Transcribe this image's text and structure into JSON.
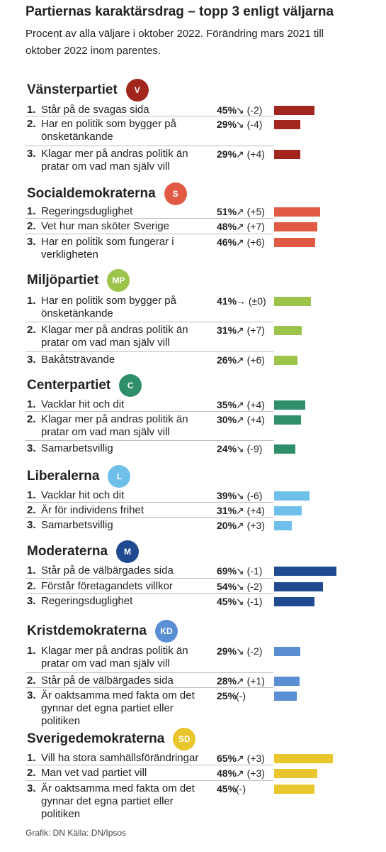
{
  "title": "Partiernas karaktärsdrag – topp 3 enligt väljarna",
  "subtitle": "Procent av alla väljare i oktober 2022. Förändring mars 2021 till oktober 2022 inom parentes.",
  "parties": [
    {
      "name": "Vänsterpartiet",
      "abbr": "V",
      "color": "#a3261e",
      "items": [
        {
          "rank": "1.",
          "label": "Står på de svagas sida",
          "value": 45,
          "value_label": "45%",
          "change": "↘ (-2)"
        },
        {
          "rank": "2.",
          "label": "Har en politik som bygger på önsketänkande",
          "value": 29,
          "value_label": "29%",
          "change": "↘ (-4)"
        },
        {
          "rank": "3.",
          "label": "Klagar mer på andras politik än pratar om vad man själv vill",
          "value": 29,
          "value_label": "29%",
          "change": "↗ (+4)"
        }
      ]
    },
    {
      "name": "Socialdemokraterna",
      "abbr": "S",
      "color": "#e05a44",
      "items": [
        {
          "rank": "1.",
          "label": "Regeringsduglighet",
          "value": 51,
          "value_label": "51%",
          "change": "↗ (+5)"
        },
        {
          "rank": "2.",
          "label": "Vet hur man sköter Sverige",
          "value": 48,
          "value_label": "48%",
          "change": "↗ (+7)"
        },
        {
          "rank": "3.",
          "label": "Har en politik som fungerar i verkligheten",
          "value": 46,
          "value_label": "46%",
          "change": "↗ (+6)"
        }
      ]
    },
    {
      "name": "Miljöpartiet",
      "abbr": "MP",
      "color": "#9dc44a",
      "items": [
        {
          "rank": "1.",
          "label": "Har en politik som bygger på önsketänkande",
          "value": 41,
          "value_label": "41%",
          "change": "→ (±0)"
        },
        {
          "rank": "2.",
          "label": "Klagar mer på andras politik än pratar om vad man själv vill",
          "value": 31,
          "value_label": "31%",
          "change": "↗ (+7)"
        },
        {
          "rank": "3.",
          "label": "Bakåtsträvande",
          "value": 26,
          "value_label": "26%",
          "change": "↗ (+6)"
        }
      ]
    },
    {
      "name": "Centerpartiet",
      "abbr": "C",
      "color": "#2f8f6a",
      "items": [
        {
          "rank": "1.",
          "label": "Vacklar hit och dit",
          "value": 35,
          "value_label": "35%",
          "change": "↗ (+4)"
        },
        {
          "rank": "2.",
          "label": "Klagar mer på andras politik än pratar om vad man själv vill",
          "value": 30,
          "value_label": "30%",
          "change": "↗ (+4)"
        },
        {
          "rank": "3.",
          "label": "Samarbetsvillig",
          "value": 24,
          "value_label": "24%",
          "change": "↘ (-9)"
        }
      ]
    },
    {
      "name": "Liberalerna",
      "abbr": "L",
      "color": "#6ec0ea",
      "items": [
        {
          "rank": "1.",
          "label": "Vacklar hit och dit",
          "value": 39,
          "value_label": "39%",
          "change": "↘ (-6)"
        },
        {
          "rank": "2.",
          "label": "Är för individens frihet",
          "value": 31,
          "value_label": "31%",
          "change": "↗ (+4)"
        },
        {
          "rank": "3.",
          "label": "Samarbetsvillig",
          "value": 20,
          "value_label": "20%",
          "change": "↗ (+3)"
        }
      ]
    },
    {
      "name": "Moderaterna",
      "abbr": "M",
      "color": "#1f4a8f",
      "items": [
        {
          "rank": "1.",
          "label": "Står på de välbärgades sida",
          "value": 69,
          "value_label": "69%",
          "change": "↘ (-1)"
        },
        {
          "rank": "2.",
          "label": "Förstår företagandets villkor",
          "value": 54,
          "value_label": "54%",
          "change": "↘ (-2)"
        },
        {
          "rank": "3.",
          "label": "Regeringsduglighet",
          "value": 45,
          "value_label": "45%",
          "change": "↘ (-1)"
        }
      ]
    },
    {
      "name": "Kristdemokraterna",
      "abbr": "KD",
      "color": "#5b8fd4",
      "items": [
        {
          "rank": "1.",
          "label": "Klagar mer på andras politik än pratar om vad man själv vill",
          "value": 29,
          "value_label": "29%",
          "change": "↘ (-2)"
        },
        {
          "rank": "2.",
          "label": "Står på de välbärgades sida",
          "value": 28,
          "value_label": "28%",
          "change": "↗ (+1)"
        },
        {
          "rank": "3.",
          "label": "Är oaktsamma med fakta om det gynnar det egna partiet eller politiken",
          "value": 25,
          "value_label": "25%",
          "change": "(-)"
        }
      ]
    },
    {
      "name": "Sverigedemokraterna",
      "abbr": "SD",
      "color": "#e8c62c",
      "items": [
        {
          "rank": "1.",
          "label": "Vill ha stora samhällsförändringar",
          "value": 65,
          "value_label": "65%",
          "change": "↗ (+3)"
        },
        {
          "rank": "2.",
          "label": "Man vet vad partiet vill",
          "value": 48,
          "value_label": "48%",
          "change": "↗ (+3)"
        },
        {
          "rank": "3.",
          "label": "Är oaktsamma med fakta om det gynnar det egna partiet eller politiken",
          "value": 45,
          "value_label": "45%",
          "change": "(-)"
        }
      ]
    }
  ],
  "source": "Grafik: DN Källa: DN/Ipsos"
}
